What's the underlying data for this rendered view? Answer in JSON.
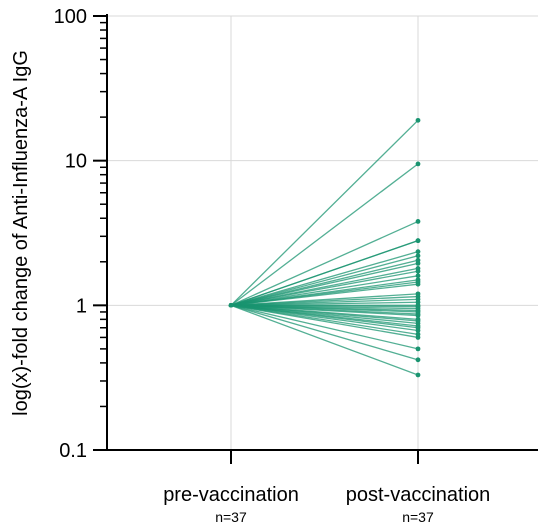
{
  "chart_data": {
    "type": "line",
    "title": "",
    "ylabel": "log(x)-fold change of Anti-Influenza-A IgG",
    "xlabel": "",
    "yscale": "log",
    "ylim": [
      0.1,
      100
    ],
    "y_ticks": [
      "0.1",
      "1",
      "10",
      "100"
    ],
    "grid": true,
    "categories": [
      "pre-vaccination",
      "post-vaccination"
    ],
    "category_n": [
      "n=37",
      "n=37"
    ],
    "color": "#1a9470",
    "pre_value": 1,
    "post_values": [
      19.0,
      9.5,
      3.8,
      2.8,
      2.8,
      2.35,
      2.2,
      2.05,
      1.95,
      1.8,
      1.72,
      1.6,
      1.5,
      1.45,
      1.4,
      1.2,
      1.15,
      1.1,
      1.05,
      1.0,
      0.98,
      0.95,
      0.92,
      0.9,
      0.87,
      0.85,
      0.8,
      0.78,
      0.75,
      0.72,
      0.7,
      0.67,
      0.63,
      0.6,
      0.5,
      0.42,
      0.33
    ]
  }
}
